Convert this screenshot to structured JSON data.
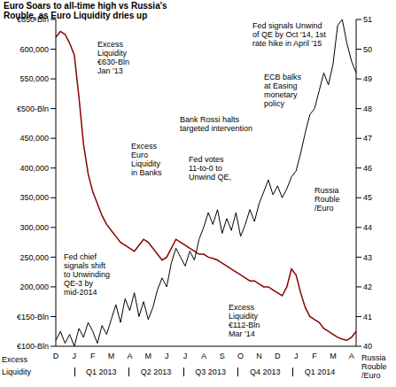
{
  "chart_data": {
    "type": "line",
    "title": "Euro Soars to all-time high vs Russia's\nRouble, as Euro Liquidity dries up",
    "categories": [
      "D",
      null,
      null,
      null,
      "J",
      null,
      null,
      null,
      "F",
      null,
      null,
      null,
      "M",
      null,
      null,
      null,
      "A",
      null,
      null,
      null,
      "M",
      null,
      null,
      null,
      "J",
      null,
      null,
      null,
      "J",
      null,
      null,
      null,
      "A",
      null,
      null,
      null,
      "S",
      null,
      null,
      null,
      "O",
      null,
      null,
      null,
      "N",
      null,
      null,
      null,
      "D",
      null,
      null,
      null,
      "J",
      null,
      null,
      null,
      "F",
      null,
      null,
      null,
      "M",
      null,
      null,
      null,
      "A",
      null
    ],
    "series": [
      {
        "name": "Excess Liquidity",
        "color": "#8b0000",
        "values": [
          620000,
          630000,
          625000,
          610000,
          590000,
          520000,
          440000,
          390000,
          360000,
          340000,
          320000,
          305000,
          295000,
          285000,
          275000,
          270000,
          265000,
          260000,
          270000,
          280000,
          275000,
          265000,
          255000,
          245000,
          250000,
          265000,
          280000,
          275000,
          270000,
          265000,
          260000,
          255000,
          255000,
          250000,
          248000,
          245000,
          240000,
          235000,
          230000,
          225000,
          220000,
          215000,
          210000,
          210000,
          205000,
          200000,
          200000,
          195000,
          190000,
          185000,
          200000,
          230000,
          220000,
          190000,
          165000,
          150000,
          145000,
          140000,
          130000,
          125000,
          120000,
          115000,
          112000,
          110000,
          115000,
          125000
        ]
      },
      {
        "name": "Russia Rouble /Euro",
        "color": "#000000",
        "axis": "y2",
        "values": [
          40.2,
          40.5,
          40.1,
          40.4,
          40.0,
          40.6,
          40.3,
          40.8,
          40.5,
          40.1,
          40.7,
          40.4,
          40.9,
          41.4,
          40.8,
          41.6,
          41.2,
          41.8,
          41.0,
          41.5,
          40.9,
          41.3,
          41.9,
          42.3,
          42.0,
          42.8,
          43.3,
          43.0,
          42.7,
          43.2,
          42.9,
          43.6,
          44.0,
          44.5,
          44.1,
          44.6,
          43.8,
          44.3,
          43.9,
          44.5,
          43.7,
          44.1,
          44.6,
          44.2,
          44.8,
          45.2,
          45.6,
          45.1,
          45.4,
          45.0,
          45.3,
          45.7,
          45.9,
          46.5,
          47.2,
          47.8,
          48.0,
          48.6,
          49.2,
          48.8,
          49.5,
          50.8,
          51.0,
          50.2,
          49.6,
          49.2
        ]
      }
    ],
    "ylim": [
      100000,
      650000
    ],
    "yticks": [
      {
        "value": 100000,
        "label": "€100-Bln"
      },
      {
        "value": 150000,
        "label": "€150-Bln"
      },
      {
        "value": 200000,
        "label": "200,000"
      },
      {
        "value": 250000,
        "label": "250,000"
      },
      {
        "value": 300000,
        "label": "300,000"
      },
      {
        "value": 350000,
        "label": "350,000"
      },
      {
        "value": 400000,
        "label": "400,000"
      },
      {
        "value": 450000,
        "label": "450,000"
      },
      {
        "value": 500000,
        "label": "€500-Bln"
      },
      {
        "value": 550000,
        "label": "550,000"
      },
      {
        "value": 600000,
        "label": "600,000"
      },
      {
        "value": 650000,
        "label": "€650-Bln"
      }
    ],
    "y2lim": [
      40,
      51
    ],
    "y2ticks": [
      40,
      41,
      42,
      43,
      44,
      45,
      46,
      47,
      48,
      49,
      50,
      51
    ],
    "quarters": [
      "Q1 2013",
      "Q2 2013",
      "Q3 2013",
      "Q4 2013",
      "Q1 2014"
    ],
    "annotations": [
      "Fed signals Unwind\nof QE by Oct '14, 1st\nrate hike in April '15",
      "Excess\nLiquidity\n€630-Bln\nJan '13",
      "ECB balks\nat Easing\nmonetary\npolicy",
      "Bank Rossi halts\ntargeted intervention",
      "Excess\nEuro\nLiquidity\nin Banks",
      "Fed votes\n11-to-0 to\nUnwind QE,",
      "Russia\nRouble\n/Euro",
      "Fed chief\nsignals shift\nto Unwinding\nQE-3 by\nmid-2014",
      "Excess\nLiquidity\n€112-Bln\nMar '14"
    ],
    "grid": false
  }
}
